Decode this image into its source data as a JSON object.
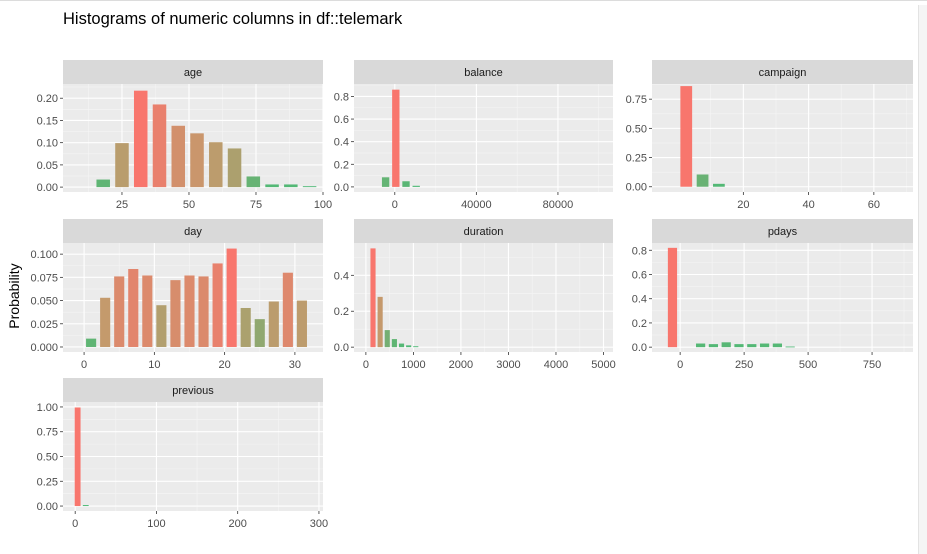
{
  "title": "Histograms of numeric columns in df::telemark",
  "ylabel": "Probability",
  "colors": {
    "panel_bg": "#ebebeb",
    "grid_major": "#ffffff",
    "strip_bg": "#d9d9d9",
    "tick_text": "#4d4d4d",
    "strip_text": "#1a1a1a",
    "fill_high": "#f8766d",
    "fill_mid": "#c49a6c",
    "fill_low": "#4cba76"
  },
  "chart_data": [
    {
      "type": "bar",
      "facet": "age",
      "xlim": [
        3,
        100
      ],
      "ylim": [
        -0.011,
        0.232
      ],
      "xticks": [
        25,
        50,
        75,
        100
      ],
      "xtick_labels": [
        "25",
        "50",
        "75",
        "100"
      ],
      "yticks": [
        0,
        0.05,
        0.1,
        0.15,
        0.2
      ],
      "ytick_labels": [
        "0.00",
        "0.05",
        "0.10",
        "0.15",
        "0.20"
      ],
      "x": [
        18,
        25,
        32,
        39,
        46,
        53,
        60,
        67,
        74,
        81,
        88,
        95
      ],
      "values": [
        0.017,
        0.099,
        0.217,
        0.186,
        0.138,
        0.121,
        0.101,
        0.087,
        0.024,
        0.006,
        0.006,
        0.002
      ]
    },
    {
      "type": "bar",
      "facet": "balance",
      "xlim": [
        -20000,
        107000
      ],
      "ylim": [
        -0.045,
        0.91
      ],
      "xticks": [
        0,
        40000,
        80000
      ],
      "xtick_labels": [
        "0",
        "40000",
        "80000"
      ],
      "yticks": [
        0,
        0.2,
        0.4,
        0.6,
        0.8
      ],
      "ytick_labels": [
        "0.0",
        "0.2",
        "0.4",
        "0.6",
        "0.8"
      ],
      "x": [
        -4500,
        500,
        5500,
        10500
      ],
      "values": [
        0.085,
        0.86,
        0.05,
        0.01
      ]
    },
    {
      "type": "bar",
      "facet": "campaign",
      "xlim": [
        -8,
        72
      ],
      "ylim": [
        -0.045,
        0.88
      ],
      "xticks": [
        20,
        40,
        60
      ],
      "xtick_labels": [
        "20",
        "40",
        "60"
      ],
      "yticks": [
        0,
        0.25,
        0.5,
        0.75
      ],
      "ytick_labels": [
        "0.00",
        "0.25",
        "0.50",
        "0.75"
      ],
      "x": [
        2.5,
        7.5,
        12.5
      ],
      "values": [
        0.862,
        0.105,
        0.025
      ]
    },
    {
      "type": "bar",
      "facet": "day",
      "xlim": [
        -3,
        34
      ],
      "ylim": [
        -0.0054,
        0.112
      ],
      "xticks": [
        0,
        10,
        20,
        30
      ],
      "xtick_labels": [
        "0",
        "10",
        "20",
        "30"
      ],
      "yticks": [
        0,
        0.025,
        0.05,
        0.075,
        0.1
      ],
      "ytick_labels": [
        "0.000",
        "0.025",
        "0.050",
        "0.075",
        "0.100"
      ],
      "x": [
        1,
        3,
        5,
        7,
        9,
        11,
        13,
        15,
        17,
        19,
        21,
        23,
        25,
        27,
        29,
        31
      ],
      "values": [
        0.009,
        0.053,
        0.076,
        0.084,
        0.077,
        0.045,
        0.072,
        0.077,
        0.076,
        0.09,
        0.106,
        0.042,
        0.03,
        0.049,
        0.08,
        0.05
      ]
    },
    {
      "type": "bar",
      "facet": "duration",
      "xlim": [
        -250,
        5200
      ],
      "ylim": [
        -0.027,
        0.58
      ],
      "xticks": [
        0,
        1000,
        2000,
        3000,
        4000,
        5000
      ],
      "xtick_labels": [
        "0",
        "1000",
        "2000",
        "3000",
        "4000",
        "5000"
      ],
      "yticks": [
        0,
        0.2,
        0.4
      ],
      "ytick_labels": [
        "0.0",
        "0.2",
        "0.4"
      ],
      "x": [
        150,
        300,
        450,
        600,
        750,
        900,
        1050
      ],
      "values": [
        0.55,
        0.28,
        0.095,
        0.045,
        0.02,
        0.01,
        0.005
      ]
    },
    {
      "type": "bar",
      "facet": "pdays",
      "xlim": [
        -110,
        910
      ],
      "ylim": [
        -0.04,
        0.86
      ],
      "xticks": [
        0,
        250,
        500,
        750
      ],
      "xtick_labels": [
        "0",
        "250",
        "500",
        "750"
      ],
      "yticks": [
        0,
        0.2,
        0.4,
        0.6,
        0.8
      ],
      "ytick_labels": [
        "0.0",
        "0.2",
        "0.4",
        "0.6",
        "0.8"
      ],
      "x": [
        -30,
        80,
        130,
        180,
        230,
        280,
        330,
        380,
        430
      ],
      "values": [
        0.82,
        0.03,
        0.025,
        0.04,
        0.025,
        0.025,
        0.03,
        0.03,
        0.005
      ]
    },
    {
      "type": "bar",
      "facet": "previous",
      "xlim": [
        -15,
        305
      ],
      "ylim": [
        -0.05,
        1.05
      ],
      "xticks": [
        0,
        100,
        200,
        300
      ],
      "xtick_labels": [
        "0",
        "100",
        "200",
        "300"
      ],
      "yticks": [
        0,
        0.25,
        0.5,
        0.75,
        1.0
      ],
      "ytick_labels": [
        "0.00",
        "0.25",
        "0.50",
        "0.75",
        "1.00"
      ],
      "x": [
        3,
        13
      ],
      "values": [
        0.995,
        0.01
      ]
    }
  ]
}
